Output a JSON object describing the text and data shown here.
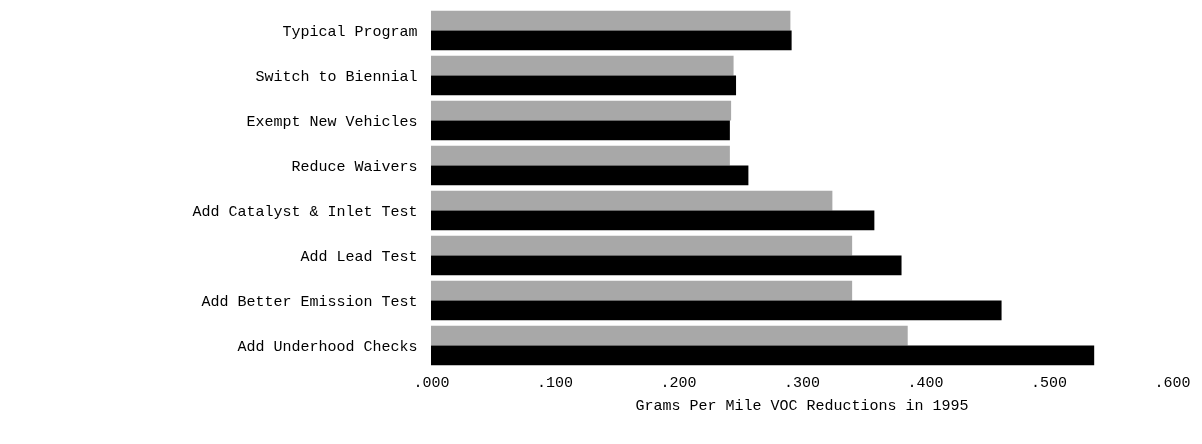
{
  "chart_data": {
    "type": "bar",
    "orientation": "horizontal",
    "xlabel": "Grams Per Mile VOC Reductions in 1995",
    "categories": [
      "Typical Program",
      "Switch to Biennial",
      "Exempt New Vehicles",
      "Reduce Waivers",
      "Add Catalyst & Inlet Test",
      "Add Lead Test",
      "Add Better Emission Test",
      "Add Underhood Checks"
    ],
    "series": [
      {
        "color": "#a8a8a8",
        "values": [
          0.291,
          0.245,
          0.243,
          0.242,
          0.325,
          0.341,
          0.341,
          0.386
        ]
      },
      {
        "color": "#000000",
        "values": [
          0.292,
          0.247,
          0.242,
          0.257,
          0.359,
          0.381,
          0.462,
          0.537
        ]
      }
    ],
    "xlim": [
      0,
      0.6
    ],
    "xticks": [
      {
        "value": 0,
        "label": ".000"
      },
      {
        "value": 0.1,
        "label": ".100"
      },
      {
        "value": 0.2,
        "label": ".200"
      },
      {
        "value": 0.3,
        "label": ".300"
      },
      {
        "value": 0.4,
        "label": ".400"
      },
      {
        "value": 0.5,
        "label": ".500"
      },
      {
        "value": 0.6,
        "label": ".600"
      }
    ],
    "grid": false
  }
}
